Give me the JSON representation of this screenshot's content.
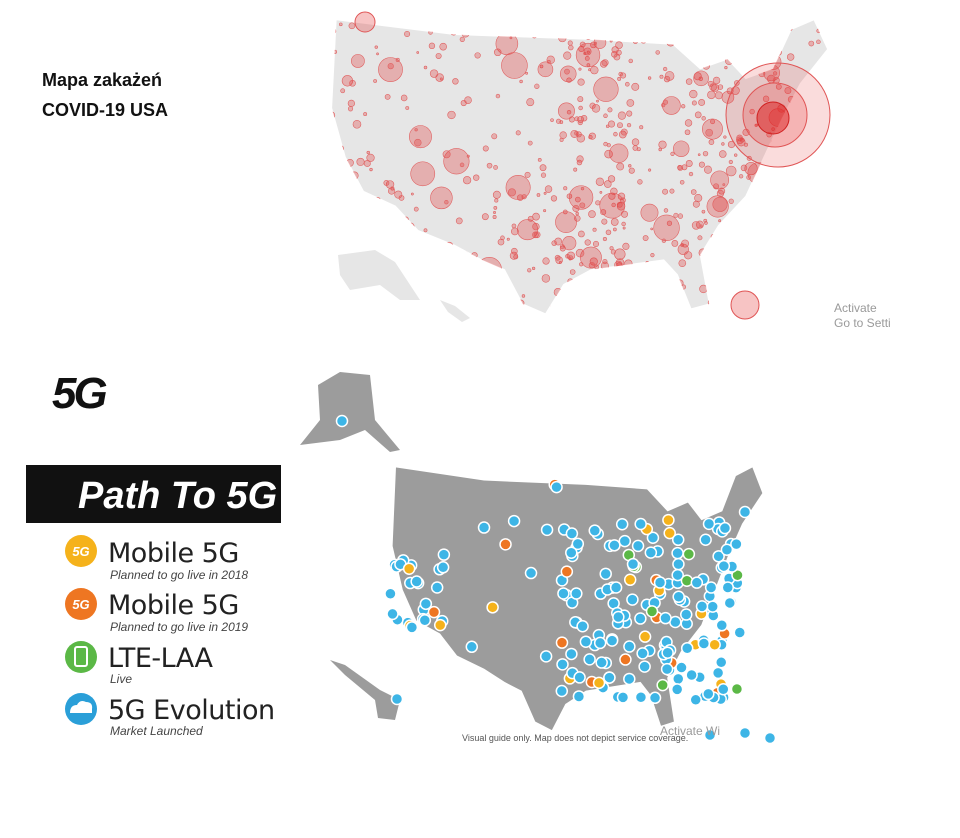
{
  "covid_map": {
    "title_line1": "Mapa zakażeń",
    "title_line2": "COVID-19 USA",
    "watermark_line1": "Activate",
    "watermark_line2": "Go to Setti"
  },
  "fiveg_map": {
    "logo": "5G",
    "banner": "Path To 5G",
    "legend": [
      {
        "icon": "5G",
        "label": "Mobile 5G",
        "note": "Planned to go live in 2018"
      },
      {
        "icon": "5G",
        "label": "Mobile 5G",
        "note": "Planned to go live in 2019"
      },
      {
        "label": "LTE-LAA",
        "note": "Live"
      },
      {
        "label": "5G Evolution",
        "note": "Market Launched"
      }
    ],
    "footnote": "Visual guide only. Map does not depict service coverage.",
    "watermark": "Activate Wi"
  }
}
